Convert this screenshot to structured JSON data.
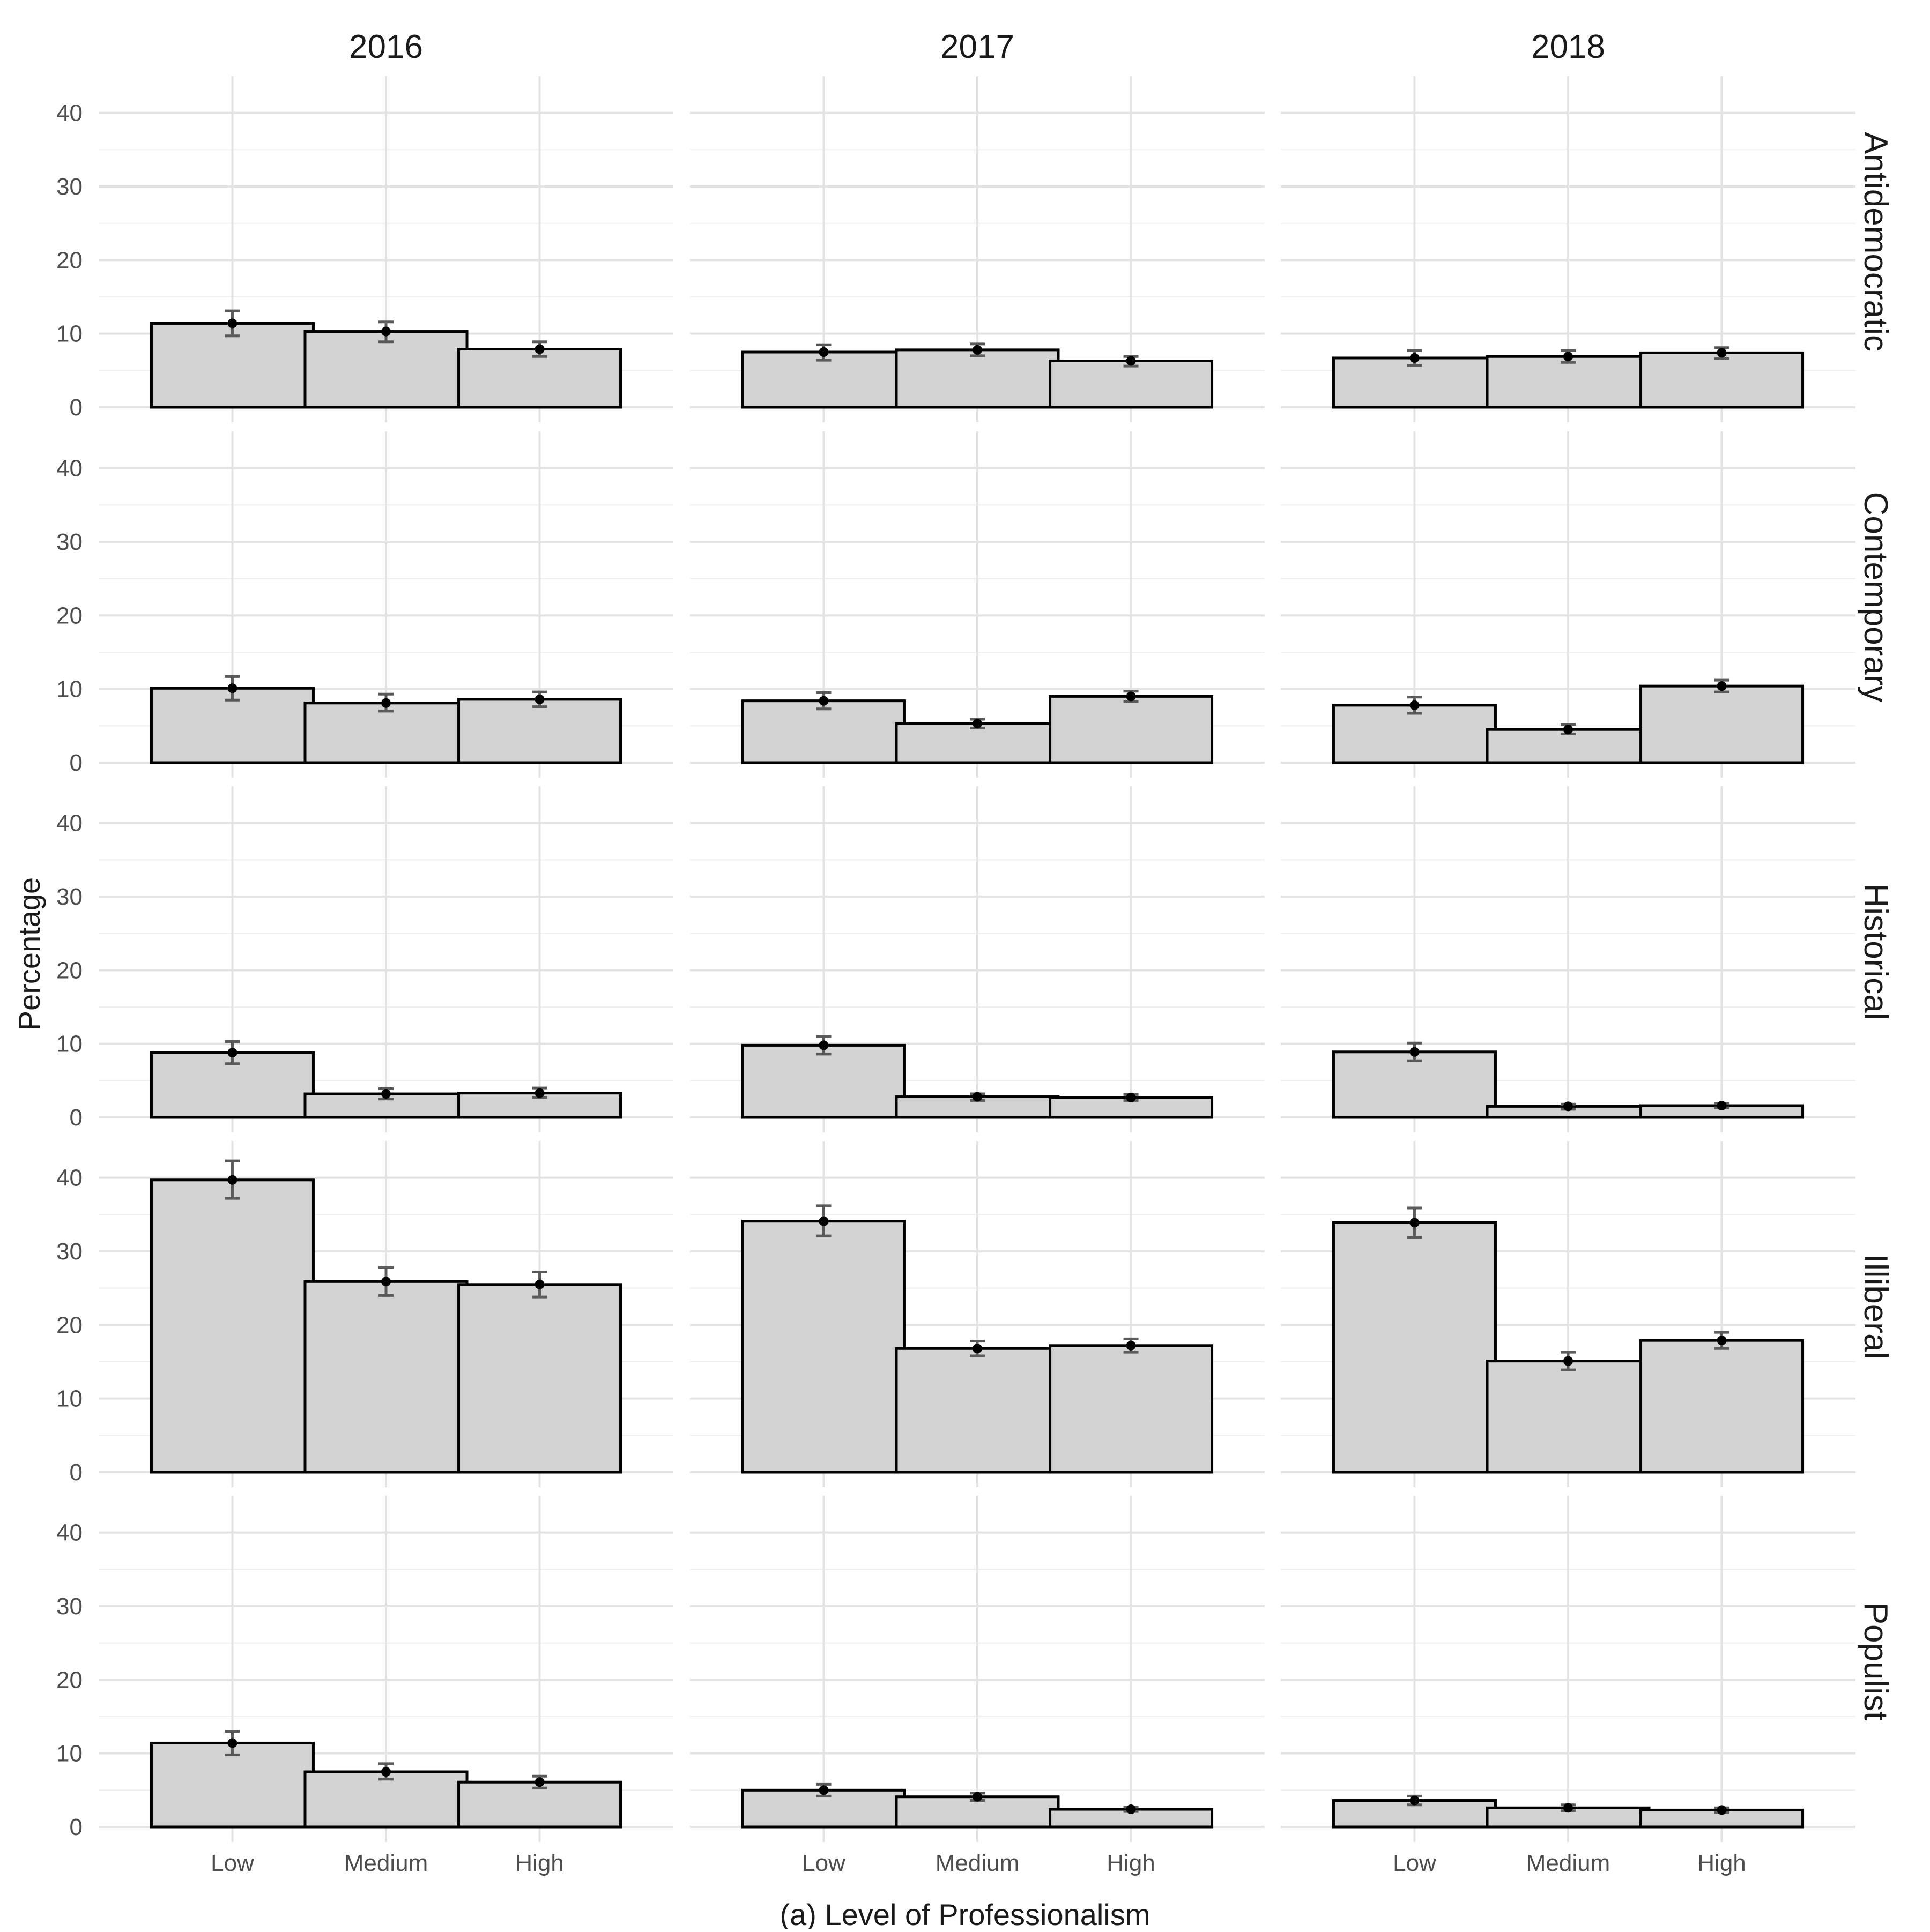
{
  "chart_data": {
    "type": "bar",
    "facet_columns": [
      "2016",
      "2017",
      "2018"
    ],
    "facet_rows": [
      "Antidemocratic",
      "Contemporary",
      "Historical",
      "Illiberal",
      "Populist"
    ],
    "categories": [
      "Low",
      "Medium",
      "High"
    ],
    "xlabel": "(a) Level of Professionalism",
    "ylabel": "Percentage",
    "ylim": [
      0,
      45
    ],
    "yticks": [
      0,
      10,
      20,
      30,
      40
    ],
    "grid": true,
    "bar_fill": "#d3d3d3",
    "bar_outline": "#000000",
    "errorbar_color": "#5a5a5a",
    "panels": {
      "Antidemocratic": {
        "2016": [
          {
            "value": 11.4,
            "lo": 9.7,
            "hi": 13.1
          },
          {
            "value": 10.3,
            "lo": 8.9,
            "hi": 11.6
          },
          {
            "value": 7.9,
            "lo": 6.9,
            "hi": 8.9
          }
        ],
        "2017": [
          {
            "value": 7.5,
            "lo": 6.4,
            "hi": 8.5
          },
          {
            "value": 7.8,
            "lo": 7.0,
            "hi": 8.6
          },
          {
            "value": 6.3,
            "lo": 5.6,
            "hi": 6.9
          }
        ],
        "2018": [
          {
            "value": 6.7,
            "lo": 5.7,
            "hi": 7.7
          },
          {
            "value": 6.9,
            "lo": 6.1,
            "hi": 7.7
          },
          {
            "value": 7.4,
            "lo": 6.6,
            "hi": 8.1
          }
        ]
      },
      "Contemporary": {
        "2016": [
          {
            "value": 10.1,
            "lo": 8.5,
            "hi": 11.7
          },
          {
            "value": 8.1,
            "lo": 7.0,
            "hi": 9.3
          },
          {
            "value": 8.6,
            "lo": 7.6,
            "hi": 9.6
          }
        ],
        "2017": [
          {
            "value": 8.4,
            "lo": 7.3,
            "hi": 9.5
          },
          {
            "value": 5.3,
            "lo": 4.7,
            "hi": 5.9
          },
          {
            "value": 9.0,
            "lo": 8.3,
            "hi": 9.7
          }
        ],
        "2018": [
          {
            "value": 7.8,
            "lo": 6.7,
            "hi": 8.9
          },
          {
            "value": 4.5,
            "lo": 3.9,
            "hi": 5.2
          },
          {
            "value": 10.4,
            "lo": 9.6,
            "hi": 11.2
          }
        ]
      },
      "Historical": {
        "2016": [
          {
            "value": 8.8,
            "lo": 7.3,
            "hi": 10.3
          },
          {
            "value": 3.2,
            "lo": 2.5,
            "hi": 3.9
          },
          {
            "value": 3.3,
            "lo": 2.7,
            "hi": 4.0
          }
        ],
        "2017": [
          {
            "value": 9.8,
            "lo": 8.6,
            "hi": 11.0
          },
          {
            "value": 2.8,
            "lo": 2.3,
            "hi": 3.2
          },
          {
            "value": 2.7,
            "lo": 2.3,
            "hi": 3.1
          }
        ],
        "2018": [
          {
            "value": 8.9,
            "lo": 7.7,
            "hi": 10.1
          },
          {
            "value": 1.5,
            "lo": 1.1,
            "hi": 1.8
          },
          {
            "value": 1.6,
            "lo": 1.3,
            "hi": 1.9
          }
        ]
      },
      "Illiberal": {
        "2016": [
          {
            "value": 39.7,
            "lo": 37.2,
            "hi": 42.3
          },
          {
            "value": 25.9,
            "lo": 24.0,
            "hi": 27.8
          },
          {
            "value": 25.5,
            "lo": 23.8,
            "hi": 27.2
          }
        ],
        "2017": [
          {
            "value": 34.1,
            "lo": 32.1,
            "hi": 36.2
          },
          {
            "value": 16.8,
            "lo": 15.8,
            "hi": 17.8
          },
          {
            "value": 17.2,
            "lo": 16.3,
            "hi": 18.1
          }
        ],
        "2018": [
          {
            "value": 33.9,
            "lo": 31.9,
            "hi": 35.9
          },
          {
            "value": 15.1,
            "lo": 13.9,
            "hi": 16.3
          },
          {
            "value": 17.9,
            "lo": 16.8,
            "hi": 19.0
          }
        ]
      },
      "Populist": {
        "2016": [
          {
            "value": 11.4,
            "lo": 9.8,
            "hi": 13.0
          },
          {
            "value": 7.5,
            "lo": 6.5,
            "hi": 8.6
          },
          {
            "value": 6.1,
            "lo": 5.3,
            "hi": 6.9
          }
        ],
        "2017": [
          {
            "value": 5.0,
            "lo": 4.2,
            "hi": 5.8
          },
          {
            "value": 4.1,
            "lo": 3.6,
            "hi": 4.6
          },
          {
            "value": 2.4,
            "lo": 2.1,
            "hi": 2.7
          }
        ],
        "2018": [
          {
            "value": 3.6,
            "lo": 3.0,
            "hi": 4.2
          },
          {
            "value": 2.6,
            "lo": 2.2,
            "hi": 3.0
          },
          {
            "value": 2.3,
            "lo": 2.0,
            "hi": 2.6
          }
        ]
      }
    }
  }
}
